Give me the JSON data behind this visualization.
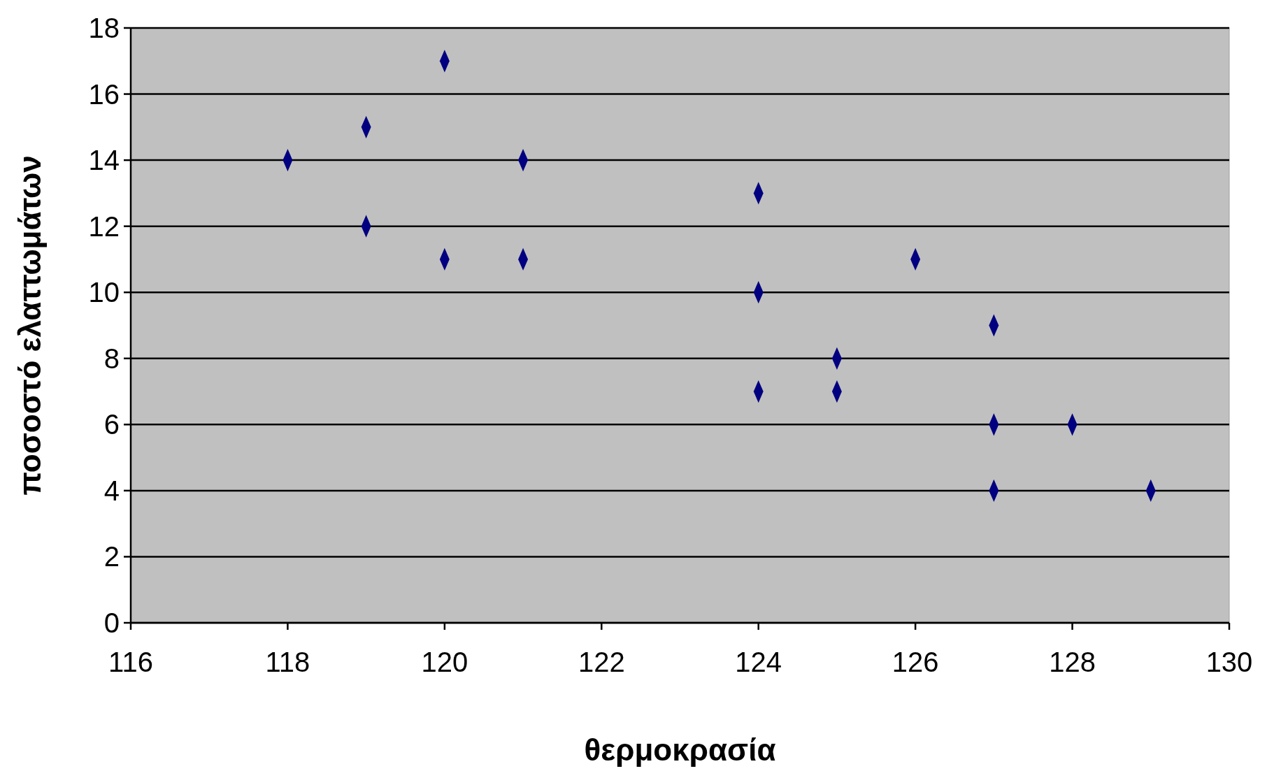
{
  "chart_data": {
    "type": "scatter",
    "xlabel": "θερμοκρασία",
    "ylabel": "ποσοστό ελαττωμάτων",
    "x": [
      118,
      119,
      119,
      120,
      120,
      121,
      121,
      124,
      124,
      124,
      125,
      125,
      126,
      127,
      127,
      127,
      128,
      129
    ],
    "values": [
      14,
      15,
      12,
      17,
      11,
      14,
      11,
      13,
      10,
      7,
      8,
      7,
      11,
      9,
      6,
      4,
      6,
      4
    ],
    "color": "#000080",
    "marker": "diamond",
    "xlim": [
      116,
      130
    ],
    "xticks": [
      116,
      118,
      120,
      122,
      124,
      126,
      128,
      130
    ],
    "ylim": [
      0,
      18
    ],
    "yticks": [
      0,
      2,
      4,
      6,
      8,
      10,
      12,
      14,
      16,
      18
    ],
    "grid": "y"
  }
}
